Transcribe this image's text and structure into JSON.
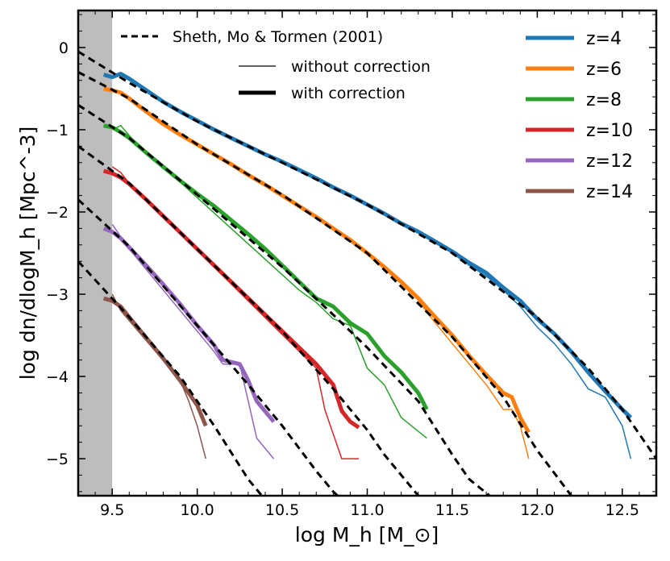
{
  "chart_data": {
    "type": "line",
    "xlabel": "log  M_h  [M_⊙]",
    "ylabel": "log  dn/dlogM_h  [Mpc^-3]",
    "xlim": [
      9.3,
      12.7
    ],
    "ylim": [
      -5.45,
      0.45
    ],
    "x_ticks": [
      9.5,
      10.0,
      10.5,
      11.0,
      11.5,
      12.0,
      12.5
    ],
    "x_tick_labels": [
      "9.5",
      "10.0",
      "10.5",
      "11.0",
      "11.5",
      "12.0",
      "12.5"
    ],
    "y_ticks": [
      0,
      -1,
      -2,
      -3,
      -4,
      -5
    ],
    "y_tick_labels": [
      "0",
      "−1",
      "−2",
      "−3",
      "−4",
      "−5"
    ],
    "shaded_region": {
      "x_from": 9.3,
      "x_to": 9.5,
      "color": "#bdbdbd"
    },
    "legend_styles": {
      "model_label": "Sheth, Mo & Tormen (2001)",
      "without_label": "without correction",
      "with_label": "with correction"
    },
    "series": [
      {
        "name": "z=4",
        "color": "#1f77b4",
        "with_correction": {
          "x": [
            9.45,
            9.5,
            9.55,
            9.6,
            9.7,
            9.8,
            9.9,
            10.0,
            10.1,
            10.2,
            10.3,
            10.4,
            10.5,
            10.6,
            10.7,
            10.8,
            10.9,
            11.0,
            11.1,
            11.2,
            11.3,
            11.4,
            11.5,
            11.6,
            11.7,
            11.8,
            11.9,
            12.0,
            12.1,
            12.2,
            12.3,
            12.4,
            12.5,
            12.55
          ],
          "y": [
            -0.33,
            -0.36,
            -0.32,
            -0.38,
            -0.52,
            -0.66,
            -0.78,
            -0.89,
            -1.0,
            -1.1,
            -1.2,
            -1.3,
            -1.39,
            -1.49,
            -1.59,
            -1.7,
            -1.8,
            -1.91,
            -2.02,
            -2.14,
            -2.24,
            -2.36,
            -2.48,
            -2.62,
            -2.74,
            -2.92,
            -3.08,
            -3.3,
            -3.48,
            -3.7,
            -3.95,
            -4.18,
            -4.4,
            -4.5
          ]
        },
        "without_correction": {
          "x": [
            11.5,
            11.6,
            11.7,
            11.8,
            11.9,
            12.0,
            12.1,
            12.2,
            12.3,
            12.4,
            12.5,
            12.55
          ],
          "y": [
            -2.5,
            -2.65,
            -2.78,
            -2.95,
            -3.15,
            -3.4,
            -3.6,
            -3.85,
            -4.15,
            -4.25,
            -4.6,
            -5.0
          ]
        }
      },
      {
        "name": "z=6",
        "color": "#ff7f0e",
        "with_correction": {
          "x": [
            9.45,
            9.5,
            9.55,
            9.6,
            9.7,
            9.8,
            9.9,
            10.0,
            10.1,
            10.2,
            10.3,
            10.4,
            10.5,
            10.6,
            10.7,
            10.8,
            10.9,
            11.0,
            11.1,
            11.2,
            11.3,
            11.4,
            11.5,
            11.6,
            11.7,
            11.8,
            11.85,
            11.9,
            11.95
          ],
          "y": [
            -0.5,
            -0.52,
            -0.55,
            -0.62,
            -0.78,
            -0.93,
            -1.06,
            -1.18,
            -1.3,
            -1.42,
            -1.55,
            -1.67,
            -1.8,
            -1.93,
            -2.06,
            -2.2,
            -2.34,
            -2.5,
            -2.67,
            -2.85,
            -3.05,
            -3.28,
            -3.5,
            -3.75,
            -3.98,
            -4.2,
            -4.25,
            -4.5,
            -4.68
          ]
        },
        "without_correction": {
          "x": [
            11.3,
            11.4,
            11.5,
            11.6,
            11.7,
            11.8,
            11.85,
            11.9,
            11.95
          ],
          "y": [
            -3.08,
            -3.35,
            -3.6,
            -3.85,
            -4.1,
            -4.4,
            -4.4,
            -4.6,
            -5.0
          ]
        }
      },
      {
        "name": "z=8",
        "color": "#2ca02c",
        "with_correction": {
          "x": [
            9.45,
            9.5,
            9.55,
            9.6,
            9.7,
            9.8,
            9.9,
            10.0,
            10.1,
            10.2,
            10.3,
            10.4,
            10.5,
            10.6,
            10.7,
            10.8,
            10.9,
            11.0,
            11.1,
            11.2,
            11.3,
            11.35
          ],
          "y": [
            -0.95,
            -0.97,
            -1.03,
            -1.1,
            -1.28,
            -1.45,
            -1.62,
            -1.78,
            -1.93,
            -2.1,
            -2.27,
            -2.45,
            -2.65,
            -2.85,
            -3.05,
            -3.15,
            -3.35,
            -3.48,
            -3.75,
            -3.95,
            -4.2,
            -4.4
          ]
        },
        "without_correction": {
          "x": [
            9.5,
            9.55,
            9.6,
            9.7,
            9.8,
            10.6,
            10.7,
            10.8,
            10.9,
            11.0,
            11.1,
            11.2,
            11.35
          ],
          "y": [
            -1.0,
            -0.95,
            -1.07,
            -1.3,
            -1.45,
            -2.95,
            -3.1,
            -3.3,
            -3.38,
            -3.9,
            -4.1,
            -4.5,
            -4.75
          ]
        }
      },
      {
        "name": "z=10",
        "color": "#d62728",
        "with_correction": {
          "x": [
            9.45,
            9.5,
            9.55,
            9.6,
            9.7,
            9.8,
            9.9,
            10.0,
            10.1,
            10.2,
            10.3,
            10.4,
            10.5,
            10.6,
            10.7,
            10.8,
            10.85,
            10.9,
            10.95
          ],
          "y": [
            -1.5,
            -1.53,
            -1.58,
            -1.66,
            -1.85,
            -2.05,
            -2.25,
            -2.45,
            -2.65,
            -2.85,
            -3.05,
            -3.25,
            -3.45,
            -3.65,
            -3.85,
            -4.1,
            -4.42,
            -4.55,
            -4.62
          ]
        },
        "without_correction": {
          "x": [
            9.5,
            9.55,
            9.6,
            10.7,
            10.75,
            10.8,
            10.85,
            10.95
          ],
          "y": [
            -1.45,
            -1.52,
            -1.65,
            -3.9,
            -4.4,
            -4.7,
            -5.0,
            -5.0
          ]
        }
      },
      {
        "name": "z=12",
        "color": "#9467bd",
        "with_correction": {
          "x": [
            9.45,
            9.5,
            9.55,
            9.6,
            9.7,
            9.8,
            9.9,
            10.0,
            10.1,
            10.15,
            10.25,
            10.3,
            10.35,
            10.45
          ],
          "y": [
            -2.2,
            -2.24,
            -2.32,
            -2.43,
            -2.65,
            -2.88,
            -3.12,
            -3.38,
            -3.62,
            -3.8,
            -3.85,
            -4.05,
            -4.3,
            -4.55
          ]
        },
        "without_correction": {
          "x": [
            9.5,
            9.55,
            9.6,
            10.1,
            10.15,
            10.25,
            10.3,
            10.35,
            10.45
          ],
          "y": [
            -2.15,
            -2.3,
            -2.45,
            -3.7,
            -3.85,
            -3.85,
            -4.3,
            -4.75,
            -5.0
          ]
        }
      },
      {
        "name": "z=14",
        "color": "#8c564b",
        "with_correction": {
          "x": [
            9.45,
            9.5,
            9.55,
            9.6,
            9.7,
            9.8,
            9.9,
            10.0,
            10.05
          ],
          "y": [
            -3.05,
            -3.08,
            -3.15,
            -3.28,
            -3.53,
            -3.78,
            -4.05,
            -4.35,
            -4.6
          ]
        },
        "without_correction": {
          "x": [
            9.5,
            9.55,
            9.9,
            9.95,
            10.0,
            10.05
          ],
          "y": [
            -3.0,
            -3.2,
            -4.05,
            -4.3,
            -4.6,
            -5.0
          ]
        }
      }
    ],
    "model_curves": [
      {
        "for": "z=4",
        "x": [
          9.3,
          9.6,
          10.0,
          10.5,
          11.0,
          11.5,
          12.0,
          12.3,
          12.5,
          12.7
        ],
        "y": [
          -0.05,
          -0.43,
          -0.9,
          -1.4,
          -1.91,
          -2.5,
          -3.28,
          -3.9,
          -4.4,
          -5.0
        ]
      },
      {
        "for": "z=6",
        "x": [
          9.3,
          9.6,
          10.0,
          10.5,
          11.0,
          11.5,
          11.8,
          12.0,
          12.2,
          12.3
        ],
        "y": [
          -0.3,
          -0.62,
          -1.18,
          -1.79,
          -2.5,
          -3.52,
          -4.25,
          -4.9,
          -5.45,
          -5.55
        ]
      },
      {
        "for": "z=8",
        "x": [
          9.3,
          9.6,
          10.0,
          10.5,
          10.8,
          11.0,
          11.3,
          11.5,
          11.6,
          11.75
        ],
        "y": [
          -0.7,
          -1.1,
          -1.79,
          -2.67,
          -3.25,
          -3.65,
          -4.3,
          -4.95,
          -5.25,
          -5.5
        ]
      },
      {
        "for": "z=10",
        "x": [
          9.3,
          9.6,
          10.0,
          10.3,
          10.5,
          10.8,
          11.0,
          11.1,
          11.3
        ],
        "y": [
          -1.2,
          -1.65,
          -2.45,
          -3.05,
          -3.45,
          -4.15,
          -4.65,
          -4.95,
          -5.45
        ]
      },
      {
        "for": "z=12",
        "x": [
          9.3,
          9.6,
          10.0,
          10.3,
          10.5,
          10.7,
          10.8,
          10.85
        ],
        "y": [
          -1.85,
          -2.42,
          -3.38,
          -4.1,
          -4.6,
          -5.15,
          -5.4,
          -5.5
        ]
      },
      {
        "for": "z=14",
        "x": [
          9.3,
          9.6,
          9.9,
          10.0,
          10.1,
          10.3,
          10.4
        ],
        "y": [
          -2.6,
          -3.28,
          -4.0,
          -4.3,
          -4.6,
          -5.25,
          -5.5
        ]
      }
    ]
  }
}
